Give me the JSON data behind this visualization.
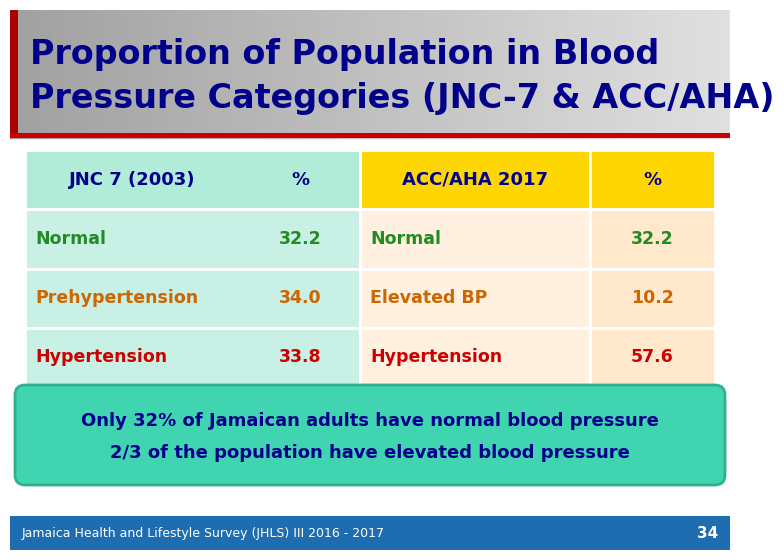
{
  "title_line1": "Proportion of Population in Blood",
  "title_line2": "Pressure Categories (JNC-7 & ACC/AHA)",
  "title_text_color": "#00008B",
  "title_bg_left": "#8B0000",
  "title_bg_right": "#C8C8C8",
  "header_jnc_bg": "#B0ECD8",
  "header_acc_bg": "#FFD700",
  "header_jnc_text": "JNC 7 (2003)",
  "header_pct1": "%",
  "header_acc_text": "ACC/AHA 2017",
  "header_pct2": "%",
  "header_text_color": "#00008B",
  "row1_jnc_label": "Normal",
  "row1_jnc_val": "32.2",
  "row1_acc_label": "Normal",
  "row1_acc_val": "32.2",
  "row1_color_label": "#228B22",
  "row1_color_val": "#228B22",
  "row2_jnc_label": "Prehypertension",
  "row2_jnc_val": "34.0",
  "row2_acc_label": "Elevated BP",
  "row2_acc_val": "10.2",
  "row2_color_label": "#CC6600",
  "row2_color_val": "#CC6600",
  "row3_jnc_label": "Hypertension",
  "row3_jnc_val": "33.8",
  "row3_acc_label": "Hypertension",
  "row3_acc_val": "57.6",
  "row3_color_label": "#CC0000",
  "row3_color_val": "#CC0000",
  "jnc_table_bg": "#C8F0E4",
  "acc_table_label_bg": "#FFF0E0",
  "acc_table_val_bg": "#FFE8CC",
  "note_bg": "#40D4B0",
  "note_line1": "Only 32% of Jamaican adults have normal blood pressure",
  "note_line2": "2/3 of the population have elevated blood pressure",
  "note_text_color": "#00008B",
  "footer_bg": "#1E6DB0",
  "footer_text": "Jamaica Health and Lifestyle Survey (JHLS) III 2016 - 2017",
  "footer_text_color": "#FFFFFF",
  "footer_number": "34",
  "slide_bg": "#FFFFFF",
  "red_bar_color": "#AA0000",
  "title_separator_color": "#CC0000"
}
